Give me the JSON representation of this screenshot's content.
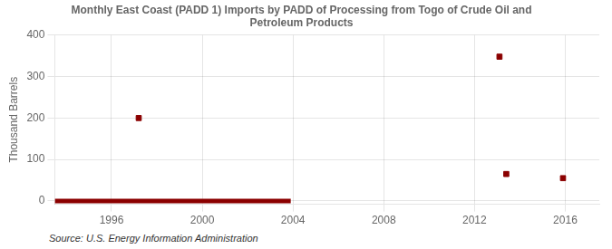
{
  "chart_data": {
    "type": "scatter",
    "title": "Monthly East Coast (PADD 1) Imports by PADD of Processing from Togo of Crude Oil and\nPetroleum Products",
    "y_label": "Thousand Barrels",
    "annotations": [
      "Source: U.S. Energy Information Administration"
    ],
    "series": [
      {
        "type": "line",
        "color": "#8b0000",
        "x": [
          1993.5,
          2003.9
        ],
        "values": [
          0,
          0
        ]
      },
      {
        "type": "scatter",
        "color": "#8b0000",
        "marker": "square",
        "x": [
          1997.2,
          2013.1,
          2013.4,
          2015.9
        ],
        "values": [
          200,
          348,
          65,
          55
        ]
      }
    ],
    "xlim": [
      1993.5,
      2017.5
    ],
    "xticks": [
      1996,
      2000,
      2004,
      2008,
      2012,
      2016
    ],
    "ylim": [
      -8,
      400
    ],
    "yticks": [
      0,
      100,
      200,
      300,
      400
    ],
    "grid": true
  }
}
